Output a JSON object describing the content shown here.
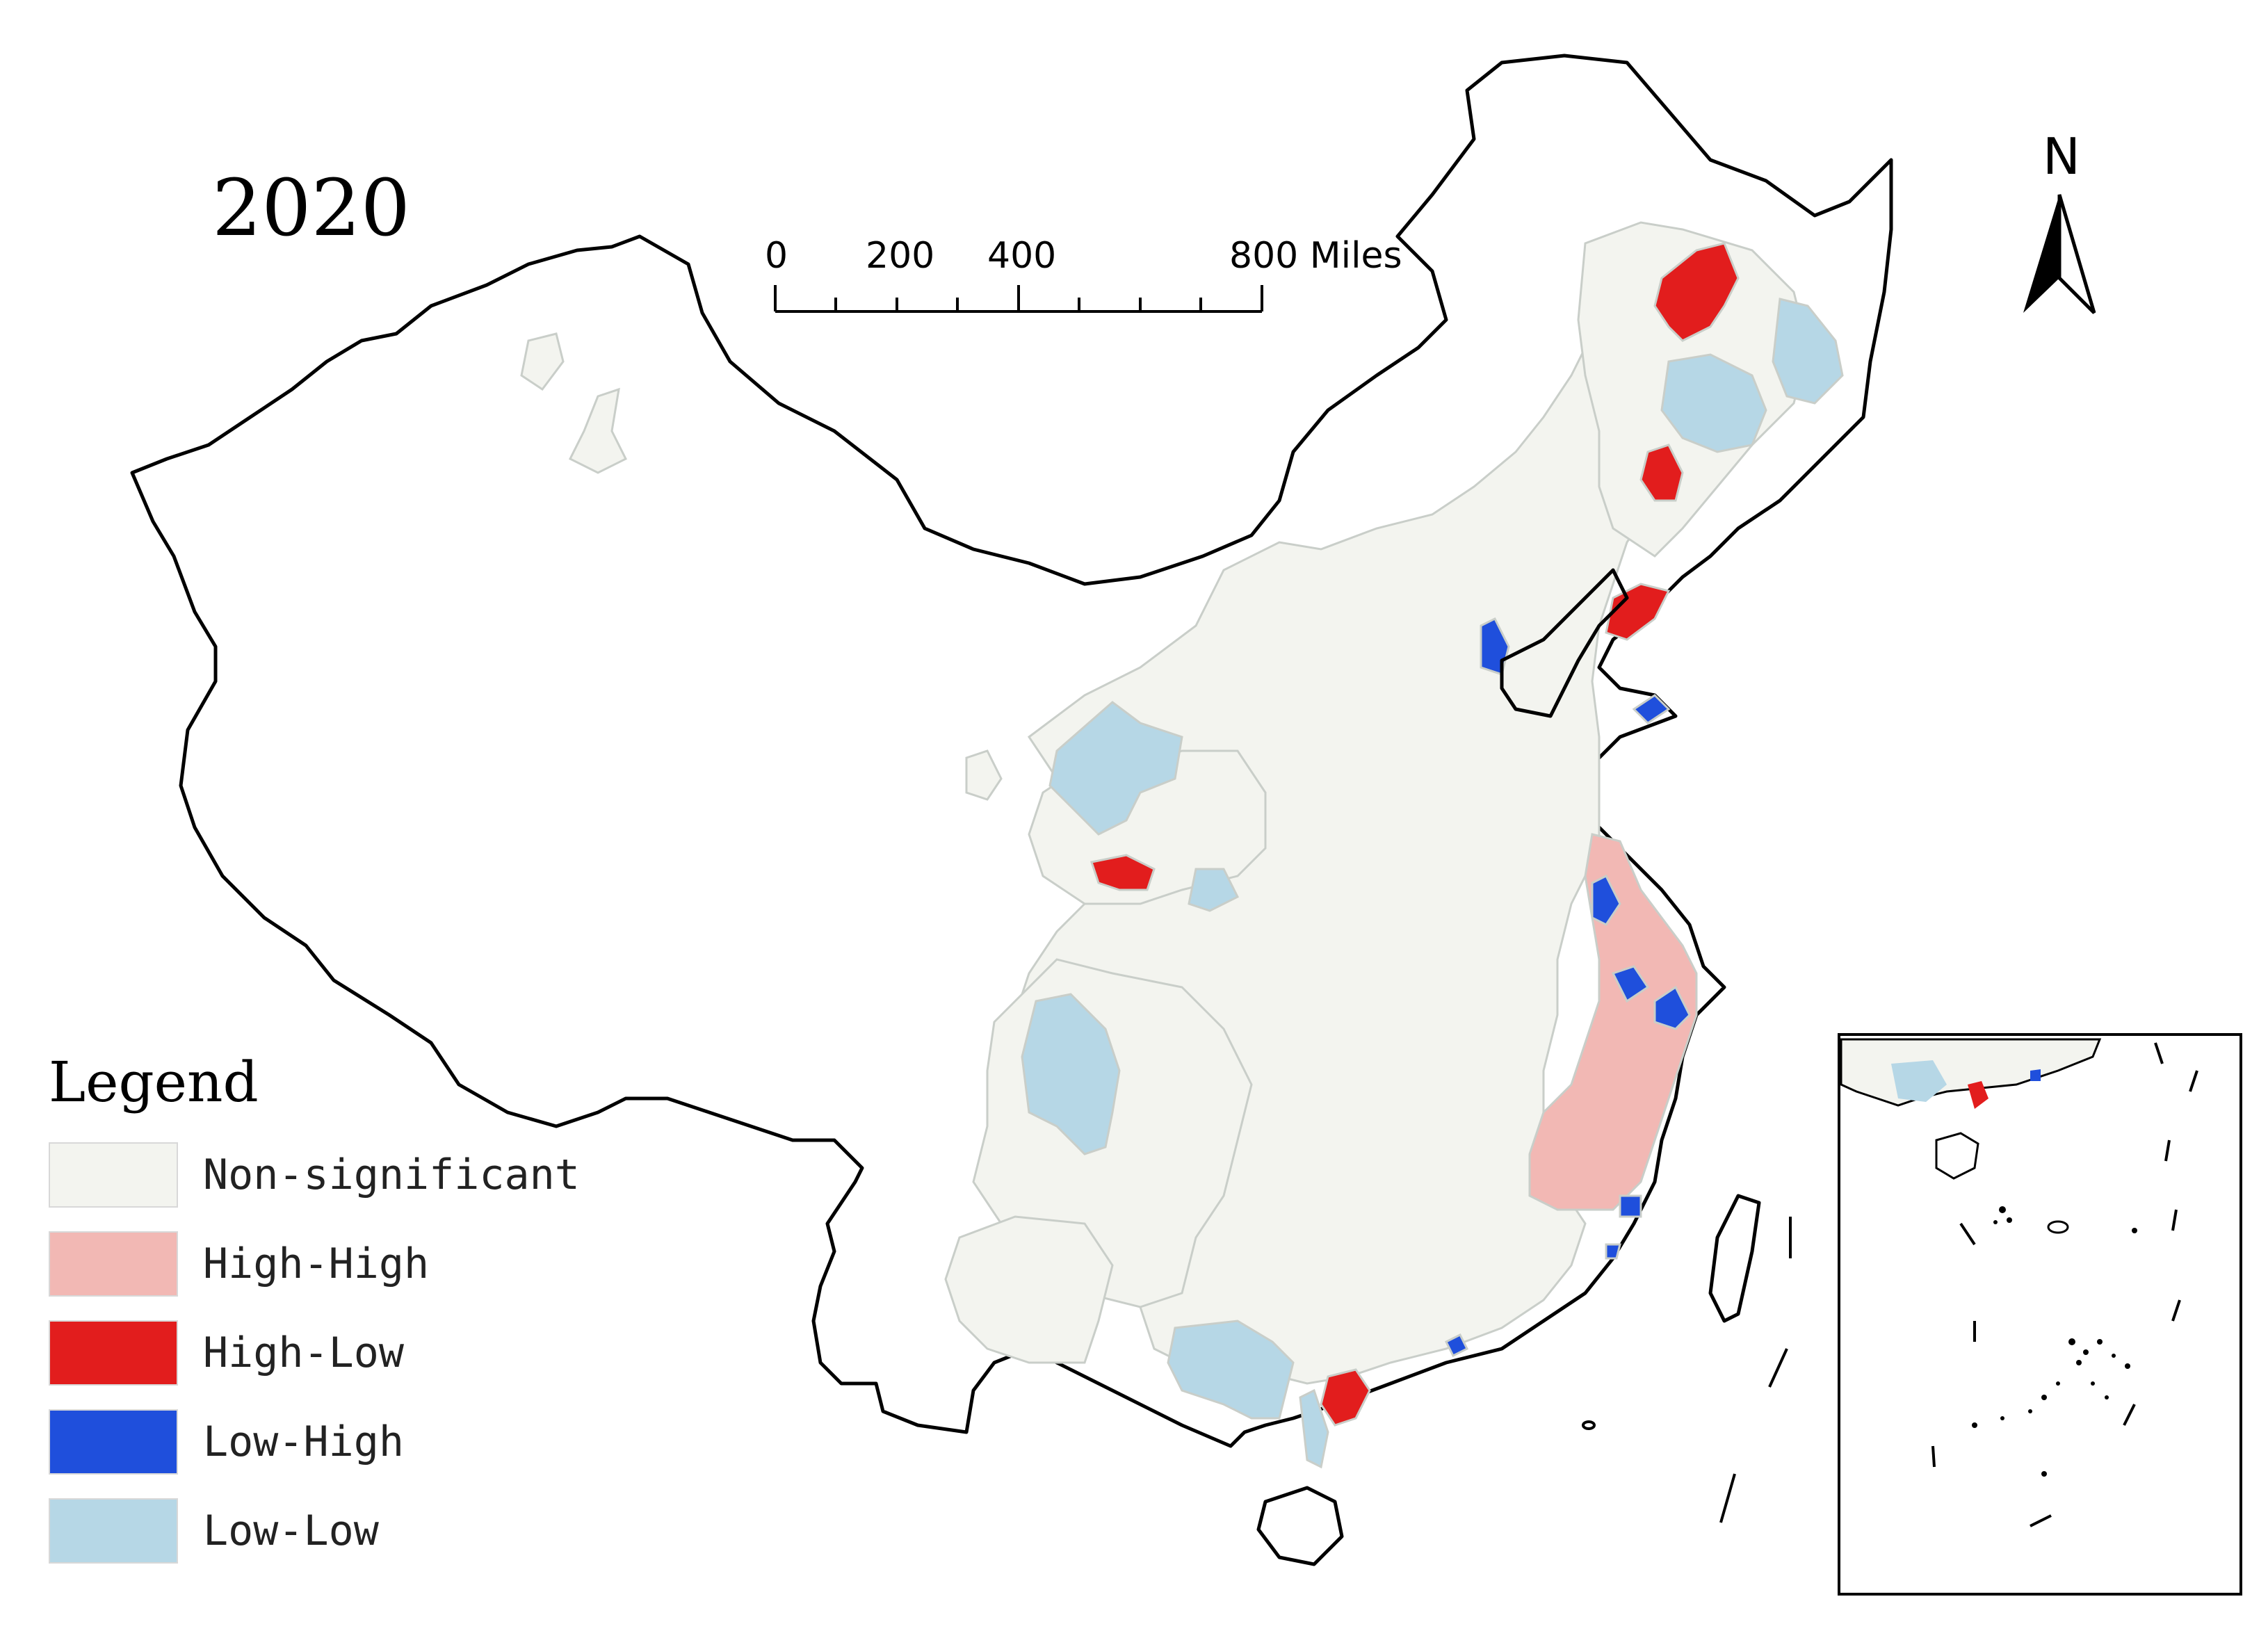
{
  "title": "2020",
  "scale_bar": {
    "ticks": [
      "0",
      "200",
      "400",
      "800 Miles"
    ]
  },
  "north_arrow": {
    "label": "N",
    "icon": "north-arrow-icon"
  },
  "legend": {
    "title": "Legend",
    "items": [
      {
        "label": "Non-significant",
        "color": "#f3f4ef"
      },
      {
        "label": "High-High",
        "color": "#f2b8b4"
      },
      {
        "label": "High-Low",
        "color": "#e21d1d"
      },
      {
        "label": "Low-High",
        "color": "#1f4fdc"
      },
      {
        "label": "Low-Low",
        "color": "#b6d7e6"
      }
    ]
  },
  "colors": {
    "background": "#ffffff",
    "outline": "#000000",
    "boundary": "#c9cec9"
  }
}
